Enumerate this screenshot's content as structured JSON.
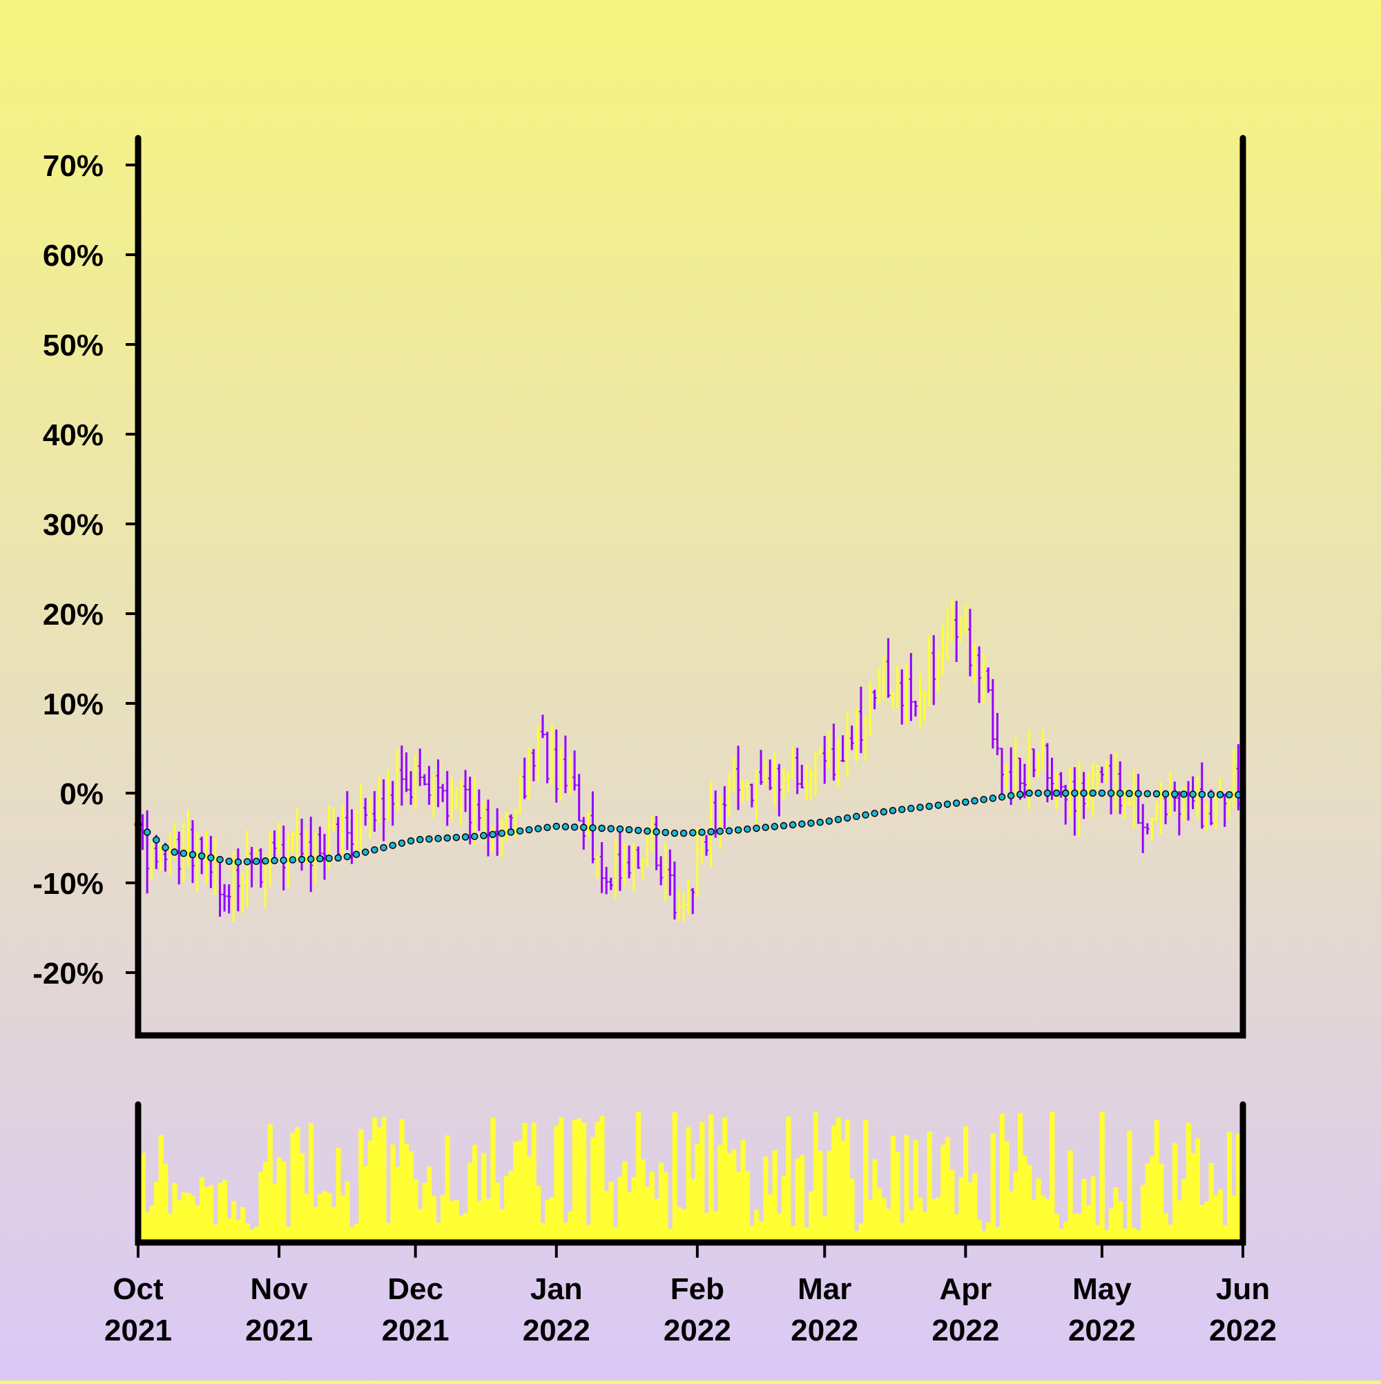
{
  "chart_data": {
    "type": "ohlc",
    "title": "",
    "xlabel": "",
    "ylabel": "",
    "y_unit": "%",
    "ylim": [
      -27,
      73
    ],
    "y_ticks": [
      70,
      60,
      50,
      40,
      30,
      20,
      10,
      0,
      -10,
      -20
    ],
    "y_tick_labels": [
      "70%",
      "60%",
      "50%",
      "40%",
      "30%",
      "20%",
      "10%",
      "0%",
      "-10%",
      "-20%"
    ],
    "xlim": [
      "2021-10-01",
      "2022-06-01"
    ],
    "x_ticks": [
      {
        "date": "2021-10-01",
        "month": "Oct",
        "year": "2021"
      },
      {
        "date": "2021-11-01",
        "month": "Nov",
        "year": "2021"
      },
      {
        "date": "2021-12-01",
        "month": "Dec",
        "year": "2021"
      },
      {
        "date": "2022-01-01",
        "month": "Jan",
        "year": "2022"
      },
      {
        "date": "2022-02-01",
        "month": "Feb",
        "year": "2022"
      },
      {
        "date": "2022-03-01",
        "month": "Mar",
        "year": "2022"
      },
      {
        "date": "2022-04-01",
        "month": "Apr",
        "year": "2022"
      },
      {
        "date": "2022-05-01",
        "month": "May",
        "year": "2022"
      },
      {
        "date": "2022-06-01",
        "month": "Jun",
        "year": "2022"
      }
    ],
    "colors": {
      "up": "#ffff33",
      "down": "#9400ff",
      "moving_average_fill": "#1fb6d6",
      "moving_average_edge": "#000000",
      "volume": "#ffff33",
      "frame": "#000000"
    },
    "price_series_anchors": {
      "name": "close",
      "dates": [
        "2021-10-01",
        "2021-10-05",
        "2021-10-10",
        "2021-10-15",
        "2021-10-20",
        "2021-10-25",
        "2021-11-01",
        "2021-11-08",
        "2021-11-15",
        "2021-11-22",
        "2021-11-28",
        "2021-12-05",
        "2021-12-12",
        "2021-12-20",
        "2021-12-28",
        "2022-01-02",
        "2022-01-08",
        "2022-01-15",
        "2022-01-22",
        "2022-01-28",
        "2022-02-02",
        "2022-02-08",
        "2022-02-15",
        "2022-02-22",
        "2022-03-01",
        "2022-03-07",
        "2022-03-14",
        "2022-03-20",
        "2022-03-25",
        "2022-03-31",
        "2022-04-05",
        "2022-04-10",
        "2022-04-18",
        "2022-04-25",
        "2022-05-01",
        "2022-05-08",
        "2022-05-15",
        "2022-05-22",
        "2022-05-31"
      ],
      "values": [
        -4,
        -8,
        -6,
        -7,
        -10,
        -9,
        -7,
        -6,
        -5,
        -3,
        2,
        1,
        -2,
        -3,
        5,
        2,
        -5,
        -10,
        -5,
        -14,
        -6,
        2,
        1,
        2,
        3,
        6,
        13,
        10,
        14,
        19,
        12,
        2,
        4,
        0,
        1,
        -2,
        -3,
        -2,
        1
      ]
    },
    "moving_average_anchors": {
      "name": "moving average",
      "dates": [
        "2021-10-01",
        "2021-10-08",
        "2021-10-15",
        "2021-10-22",
        "2021-11-01",
        "2021-11-15",
        "2021-12-01",
        "2021-12-15",
        "2022-01-01",
        "2022-01-15",
        "2022-01-28",
        "2022-02-08",
        "2022-03-01",
        "2022-03-15",
        "2022-04-01",
        "2022-04-15",
        "2022-05-01",
        "2022-06-01"
      ],
      "values": [
        -3.5,
        -6.5,
        -7.0,
        -7.7,
        -7.5,
        -7.2,
        -5.2,
        -4.8,
        -3.7,
        -4.0,
        -4.5,
        -4.2,
        -3.2,
        -2.0,
        -1.0,
        0.0,
        0.0,
        -0.2
      ]
    },
    "volume": {
      "name": "volume",
      "ylim": [
        0,
        100
      ],
      "visible_range": [
        8,
        95
      ]
    }
  }
}
